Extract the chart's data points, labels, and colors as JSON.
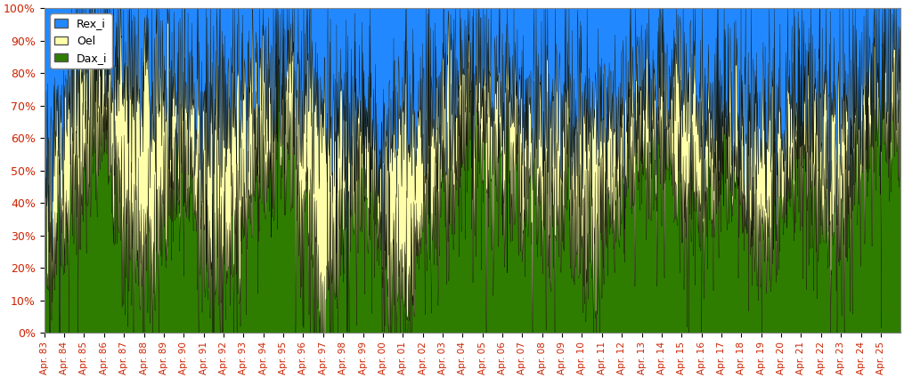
{
  "legend_labels": [
    "Rex_i",
    "Oel",
    "Dax_i"
  ],
  "colors": [
    "#2288FF",
    "#FFFFAA",
    "#2E7D00"
  ],
  "edge_color": "#111100",
  "background_color": "#FFFFFF",
  "plot_bg_color": "#FFFFFF",
  "yticks": [
    0.0,
    0.1,
    0.2,
    0.3,
    0.4,
    0.5,
    0.6,
    0.7,
    0.8,
    0.9,
    1.0
  ],
  "ytick_labels": [
    "0%",
    "10%",
    "20%",
    "30%",
    "40%",
    "50%",
    "60%",
    "70%",
    "80%",
    "90%",
    "100%"
  ],
  "x_labels": [
    "Apr. 83",
    "Apr. 84",
    "Apr. 85",
    "Apr. 86",
    "Apr. 87",
    "Apr. 88",
    "Apr. 89",
    "Apr. 90",
    "Apr. 91",
    "Apr. 92",
    "Apr. 93",
    "Apr. 94",
    "Apr. 95",
    "Apr. 96",
    "Apr. 97",
    "Apr. 98",
    "Apr. 99",
    "Apr. 00",
    "Apr. 01",
    "Apr. 02",
    "Apr. 03",
    "Apr. 04",
    "Apr. 05",
    "Apr. 06",
    "Apr. 07",
    "Apr. 08",
    "Apr. 09",
    "Apr. 10",
    "Apr. 11",
    "Apr. 12",
    "Apr. 13",
    "Apr. 14",
    "Apr. 15",
    "Apr. 16",
    "Apr. 17",
    "Apr. 18",
    "Apr. 19",
    "Apr. 20",
    "Apr. 21",
    "Apr. 22",
    "Apr. 23",
    "Apr. 24",
    "Apr. 25"
  ],
  "dax_base": [
    0.18,
    0.35,
    0.5,
    0.65,
    0.32,
    0.28,
    0.4,
    0.52,
    0.28,
    0.2,
    0.37,
    0.5,
    0.65,
    0.38,
    0.1,
    0.4,
    0.5,
    0.28,
    0.1,
    0.36,
    0.43,
    0.52,
    0.58,
    0.53,
    0.45,
    0.35,
    0.44,
    0.32,
    0.28,
    0.48,
    0.53,
    0.58,
    0.44,
    0.38,
    0.54,
    0.42,
    0.28,
    0.44,
    0.53,
    0.38,
    0.34,
    0.58,
    0.64
  ],
  "oel_base": [
    0.3,
    0.32,
    0.38,
    0.2,
    0.5,
    0.48,
    0.38,
    0.2,
    0.4,
    0.5,
    0.35,
    0.25,
    0.18,
    0.4,
    0.58,
    0.28,
    0.18,
    0.3,
    0.55,
    0.32,
    0.28,
    0.22,
    0.24,
    0.25,
    0.3,
    0.28,
    0.25,
    0.35,
    0.36,
    0.22,
    0.2,
    0.18,
    0.3,
    0.3,
    0.18,
    0.26,
    0.36,
    0.26,
    0.18,
    0.3,
    0.32,
    0.14,
    0.14
  ],
  "rex_base": [
    0.52,
    0.33,
    0.12,
    0.15,
    0.18,
    0.24,
    0.22,
    0.28,
    0.32,
    0.3,
    0.28,
    0.25,
    0.17,
    0.22,
    0.32,
    0.32,
    0.32,
    0.42,
    0.35,
    0.32,
    0.29,
    0.26,
    0.18,
    0.22,
    0.25,
    0.37,
    0.31,
    0.33,
    0.36,
    0.3,
    0.27,
    0.24,
    0.26,
    0.32,
    0.28,
    0.32,
    0.36,
    0.3,
    0.29,
    0.32,
    0.34,
    0.28,
    0.22
  ],
  "noise_seed": 17,
  "noise_scale": 0.18,
  "samples_per_year": 52
}
